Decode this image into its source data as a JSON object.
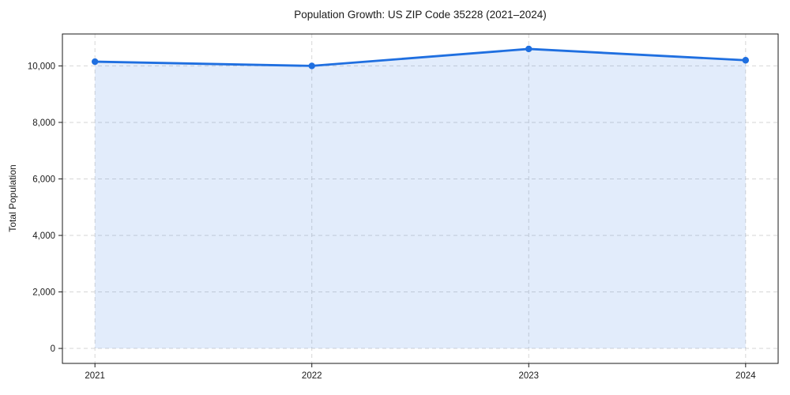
{
  "chart_data": {
    "type": "area",
    "title": "Population Growth: US ZIP Code 35228 (2021–2024)",
    "xlabel": "",
    "ylabel": "Total Population",
    "categories": [
      "2021",
      "2022",
      "2023",
      "2024"
    ],
    "values": [
      10150,
      10000,
      10600,
      10200
    ],
    "series": [
      {
        "name": "Total Population",
        "values": [
          10150,
          10000,
          10600,
          10200
        ]
      }
    ],
    "yticks": [
      0,
      2000,
      4000,
      6000,
      8000,
      10000
    ],
    "ytick_labels": [
      "0",
      "2,000",
      "4,000",
      "6,000",
      "8,000",
      "10,000"
    ],
    "ylim": [
      -530,
      11130
    ],
    "grid": true,
    "grid_style": "dashed",
    "legend": "none",
    "marker": "circle",
    "colors": {
      "line": "#1f6fe0",
      "fill_opacity": 0.13,
      "grid": "#d6d6d6",
      "spine": "#1a1a1a",
      "text": "#1a1a1a",
      "background": "#ffffff"
    }
  }
}
